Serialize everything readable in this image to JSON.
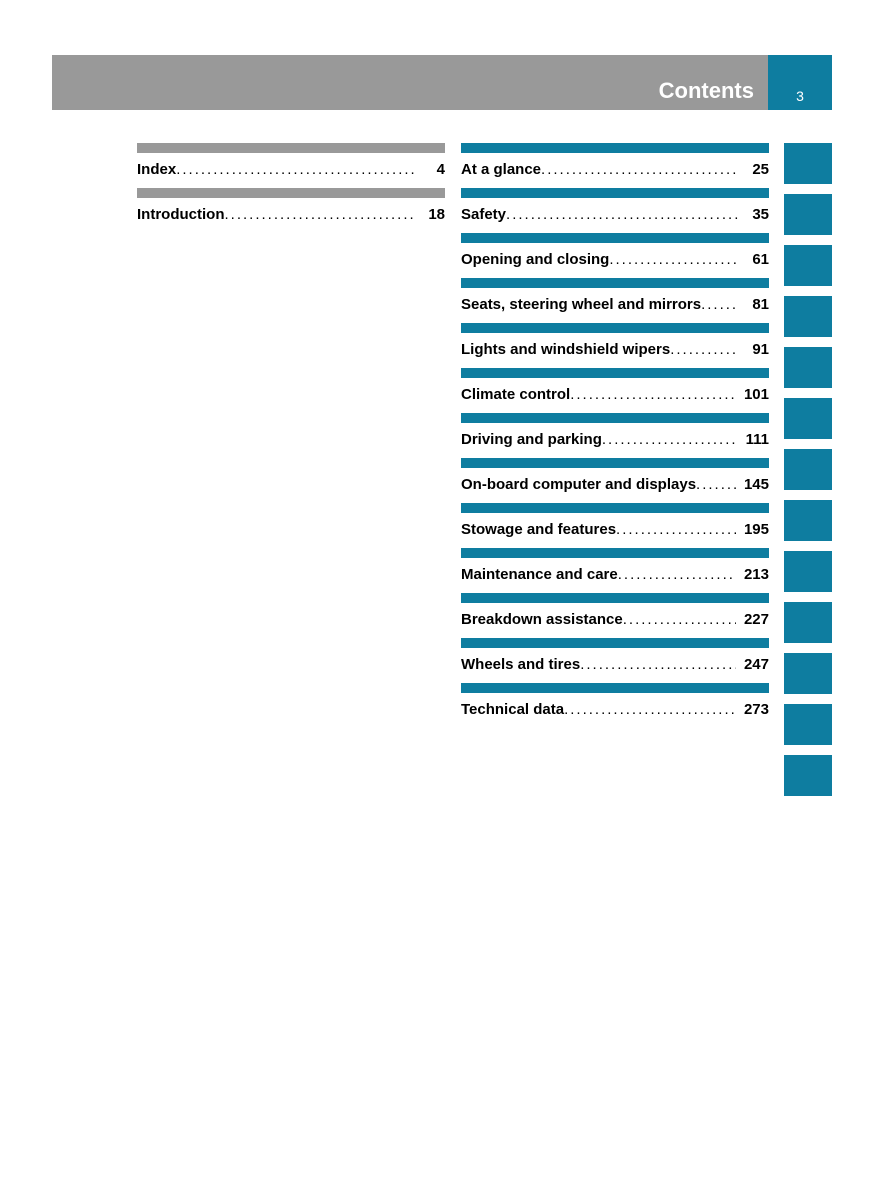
{
  "header": {
    "title": "Contents",
    "page_num": "3"
  },
  "colors": {
    "grey": "#999999",
    "blue": "#0e7da0",
    "text": "#000000",
    "header_text": "#ffffff"
  },
  "left_entries": [
    {
      "label": "Index",
      "page": "4"
    },
    {
      "label": "Introduction",
      "page": "18"
    }
  ],
  "right_entries": [
    {
      "label": "At a glance",
      "page": "25"
    },
    {
      "label": "Safety",
      "page": "35"
    },
    {
      "label": "Opening and closing",
      "page": "61"
    },
    {
      "label": "Seats, steering wheel and mirrors",
      "page": "81"
    },
    {
      "label": "Lights and windshield wipers",
      "page": "91"
    },
    {
      "label": "Climate control",
      "page": "101"
    },
    {
      "label": "Driving and parking",
      "page": "111"
    },
    {
      "label": "On-board computer and displays",
      "page": "145"
    },
    {
      "label": "Stowage and features",
      "page": "195"
    },
    {
      "label": "Maintenance and care",
      "page": "213"
    },
    {
      "label": "Breakdown assistance",
      "page": "227"
    },
    {
      "label": "Wheels and tires",
      "page": "247"
    },
    {
      "label": "Technical data",
      "page": "273"
    }
  ]
}
